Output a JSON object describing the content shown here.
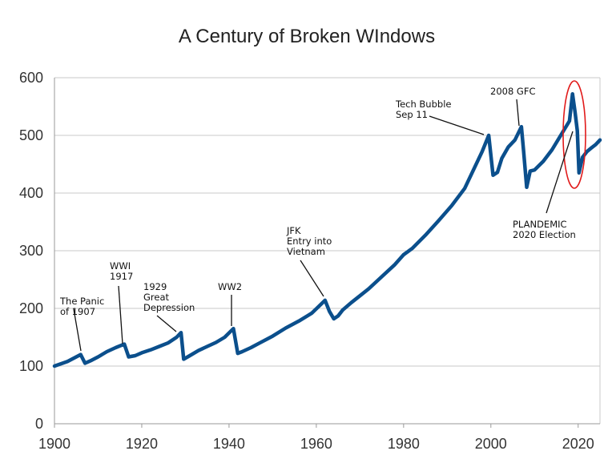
{
  "chart_data": {
    "type": "line",
    "title": "A Century of Broken WIndows",
    "xlabel": "",
    "ylabel": "",
    "xlim": [
      1900,
      2025
    ],
    "ylim": [
      0,
      600
    ],
    "x_ticks": [
      "1900",
      "1920",
      "1940",
      "1960",
      "1980",
      "2000",
      "2020"
    ],
    "y_ticks": [
      "0",
      "100",
      "200",
      "300",
      "400",
      "500",
      "600"
    ],
    "grid": true,
    "line_color": "#0b4f8c",
    "highlight_color": "#e11a1a",
    "series": [
      {
        "x": [
          1900,
          1903,
          1906,
          1907,
          1908.5,
          1910,
          1912,
          1914,
          1916,
          1917,
          1918.5,
          1920,
          1922,
          1924,
          1926,
          1928,
          1929,
          1929.6,
          1931,
          1933,
          1935,
          1937,
          1939,
          1941,
          1942,
          1943,
          1945,
          1947,
          1950,
          1953,
          1956,
          1959,
          1962,
          1963,
          1964,
          1965,
          1966,
          1968,
          1970,
          1972,
          1975,
          1978,
          1980,
          1982,
          1985,
          1988,
          1991,
          1994,
          1996,
          1998,
          1999.5,
          2000.5,
          2001.5,
          2002.5,
          2004,
          2005.5,
          2007,
          2007.5,
          2008.2,
          2009,
          2010,
          2012,
          2014,
          2016,
          2018,
          2018.7,
          2019.3,
          2019.8,
          2020.2,
          2021,
          2022,
          2023,
          2024,
          2025
        ],
        "values": [
          100,
          108,
          120,
          105,
          110,
          116,
          125,
          132,
          138,
          116,
          118,
          123,
          128,
          134,
          140,
          150,
          158,
          112,
          118,
          127,
          134,
          141,
          150,
          165,
          122,
          125,
          132,
          140,
          152,
          166,
          178,
          192,
          214,
          195,
          182,
          187,
          197,
          210,
          222,
          234,
          255,
          276,
          293,
          304,
          327,
          352,
          378,
          408,
          440,
          472,
          500,
          431,
          436,
          460,
          480,
          492,
          515,
          472,
          410,
          438,
          440,
          455,
          475,
          500,
          525,
          572,
          540,
          508,
          435,
          462,
          472,
          478,
          484,
          492
        ]
      }
    ],
    "annotations": [
      {
        "lines": [
          "The Panic",
          "of 1907"
        ],
        "x": 1906,
        "y": 120
      },
      {
        "lines": [
          "WWI",
          "1917"
        ],
        "x": 1916,
        "y": 138
      },
      {
        "lines": [
          "1929",
          "Great",
          "Depression"
        ],
        "x": 1928,
        "y": 155
      },
      {
        "lines": [
          "WW2"
        ],
        "x": 1941,
        "y": 165
      },
      {
        "lines": [
          "JFK",
          "Entry into",
          "Vietnam"
        ],
        "x": 1962,
        "y": 214
      },
      {
        "lines": [
          "Tech Bubble",
          "Sep 11"
        ],
        "x": 1999.5,
        "y": 500
      },
      {
        "lines": [
          "2008 GFC"
        ],
        "x": 2007,
        "y": 512
      },
      {
        "lines": [
          "PLANDEMIC",
          "2020 Election"
        ],
        "x": 2020,
        "y": 505
      }
    ]
  }
}
